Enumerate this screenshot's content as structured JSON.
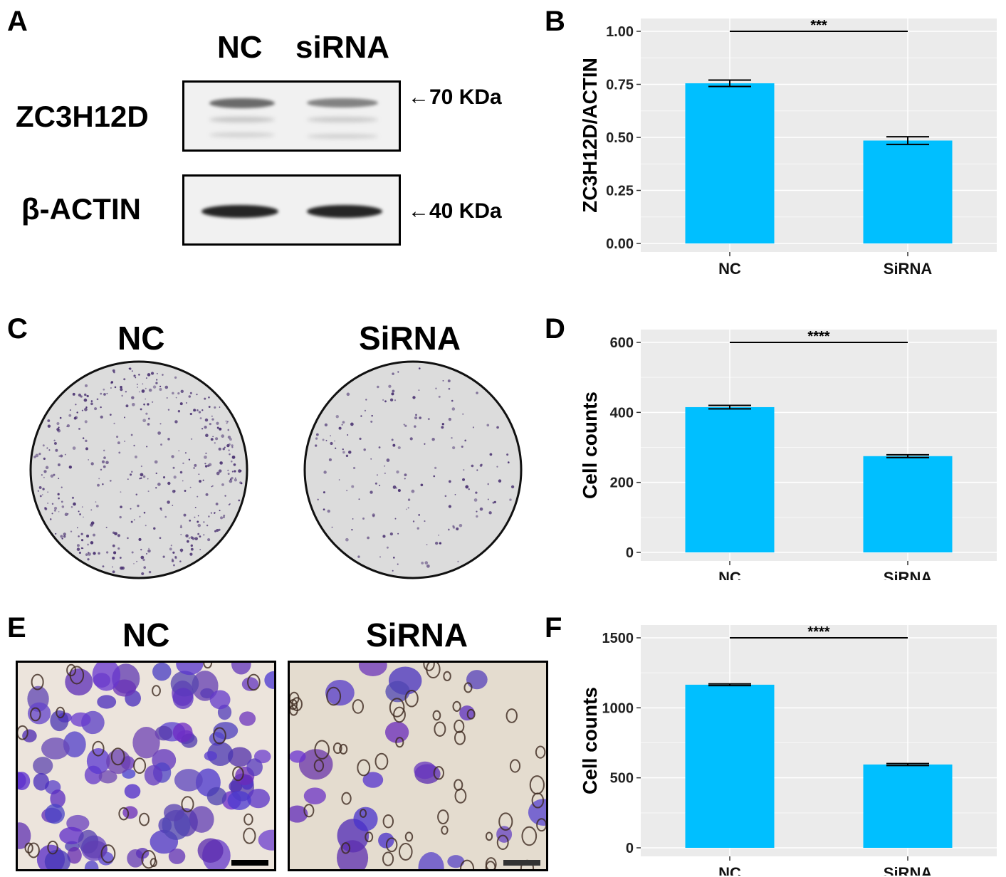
{
  "panels": {
    "A": {
      "letter": "A",
      "lanes": [
        "NC",
        "siRNA"
      ],
      "rows": [
        {
          "protein": "ZC3H12D",
          "marker": "←70 KDa"
        },
        {
          "protein": "β-ACTIN",
          "marker": "←40 KDa"
        }
      ]
    },
    "C": {
      "letter": "C",
      "left_label": "NC",
      "right_label": "SiRNA"
    },
    "E": {
      "letter": "E",
      "left_label": "NC",
      "right_label": "SiRNA"
    }
  },
  "colors": {
    "bar": "#00BFFF",
    "panel_bg": "#EBEBEB",
    "grid": "#FFFFFF",
    "stain": "#5a35b8"
  },
  "chart_data": [
    {
      "letter": "B",
      "type": "bar",
      "categories": [
        "NC",
        "SiRNA"
      ],
      "values": [
        0.755,
        0.485
      ],
      "errors": [
        0.015,
        0.018
      ],
      "ylabel": "ZC3H12D/ACTIN",
      "ylim": [
        0,
        1.0
      ],
      "yticks": [
        0,
        0.25,
        0.5,
        0.75,
        1.0
      ],
      "ytick_labels": [
        "0.00",
        "0.25",
        "0.50",
        "0.75",
        "1.00"
      ],
      "significance": "***",
      "grid": true
    },
    {
      "letter": "D",
      "type": "bar",
      "categories": [
        "NC",
        "SiRNA"
      ],
      "values": [
        415,
        275
      ],
      "errors": [
        5,
        4
      ],
      "ylabel": "Cell counts",
      "ylim": [
        0,
        600
      ],
      "yticks": [
        0,
        200,
        400,
        600
      ],
      "ytick_labels": [
        "0",
        "200",
        "400",
        "600"
      ],
      "significance": "****",
      "grid": true
    },
    {
      "letter": "F",
      "type": "bar",
      "categories": [
        "NC",
        "SiRNA"
      ],
      "values": [
        1165,
        595
      ],
      "errors": [
        6,
        7
      ],
      "ylabel": "Cell counts",
      "ylim": [
        0,
        1500
      ],
      "yticks": [
        0,
        500,
        1000,
        1500
      ],
      "ytick_labels": [
        "0",
        "500",
        "1000",
        "1500"
      ],
      "significance": "****",
      "grid": true
    }
  ]
}
